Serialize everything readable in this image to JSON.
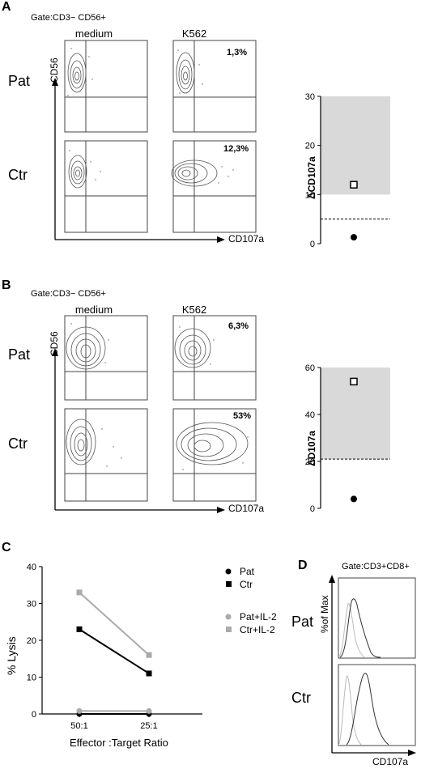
{
  "panels": [
    {
      "id": "A",
      "gate": "Gate:CD3− CD56+",
      "col_labels": [
        "medium",
        "K562"
      ],
      "row_labels": [
        "Pat",
        "Ctr"
      ],
      "y_axis_label": "CD56",
      "x_axis_label": "CD107a",
      "percentages": [
        "1,3%",
        "12,3%"
      ]
    },
    {
      "id": "B",
      "gate": "Gate:CD3− CD56+",
      "col_labels": [
        "medium",
        "K562"
      ],
      "row_labels": [
        "Pat",
        "Ctr"
      ],
      "y_axis_label": "CD56",
      "x_axis_label": "CD107a",
      "percentages": [
        "6,3%",
        "53%"
      ]
    },
    {
      "id": "C",
      "legend": [
        "Pat",
        "Ctr",
        "Pat+IL-2",
        "Ctr+IL-2"
      ]
    },
    {
      "id": "D",
      "gate": "Gate:CD3+CD8+",
      "row_labels": [
        "Pat",
        "Ctr"
      ],
      "y_axis_label": "%of Max",
      "x_axis_label": "CD107a"
    }
  ],
  "chart_data": [
    {
      "type": "scatter",
      "panel": "A",
      "ylabel": "ΔCD107a",
      "xlabel": "",
      "ylim": [
        0,
        30
      ],
      "yticks": [
        0,
        10,
        20,
        30
      ],
      "normal_range": [
        10,
        30
      ],
      "threshold": 5,
      "series": [
        {
          "name": "Ctr",
          "marker": "open-square",
          "values": [
            12
          ]
        },
        {
          "name": "Pat",
          "marker": "filled-circle",
          "values": [
            1.3
          ]
        }
      ]
    },
    {
      "type": "scatter",
      "panel": "B",
      "ylabel": "ΔD107a",
      "xlabel": "",
      "ylim": [
        0,
        60
      ],
      "yticks": [
        0,
        20,
        40,
        60
      ],
      "normal_range": [
        21,
        60
      ],
      "threshold": 21,
      "series": [
        {
          "name": "Ctr",
          "marker": "open-square",
          "values": [
            54
          ]
        },
        {
          "name": "Pat",
          "marker": "filled-circle",
          "values": [
            4
          ]
        }
      ]
    },
    {
      "type": "line",
      "panel": "C",
      "ylabel": "% Lysis",
      "xlabel": "Effector :Target Ratio",
      "categories": [
        "50:1",
        "25:1"
      ],
      "ylim": [
        0,
        40
      ],
      "yticks": [
        0,
        10,
        20,
        30,
        40
      ],
      "series": [
        {
          "name": "Pat",
          "color": "#000000",
          "marker": "circle",
          "values": [
            0,
            0
          ]
        },
        {
          "name": "Ctr",
          "color": "#000000",
          "marker": "square",
          "values": [
            23,
            11
          ]
        },
        {
          "name": "Pat+IL-2",
          "color": "#aaaaaa",
          "marker": "circle",
          "values": [
            0.8,
            0.8
          ]
        },
        {
          "name": "Ctr+IL-2",
          "color": "#aaaaaa",
          "marker": "square",
          "values": [
            33,
            16
          ]
        }
      ]
    }
  ]
}
